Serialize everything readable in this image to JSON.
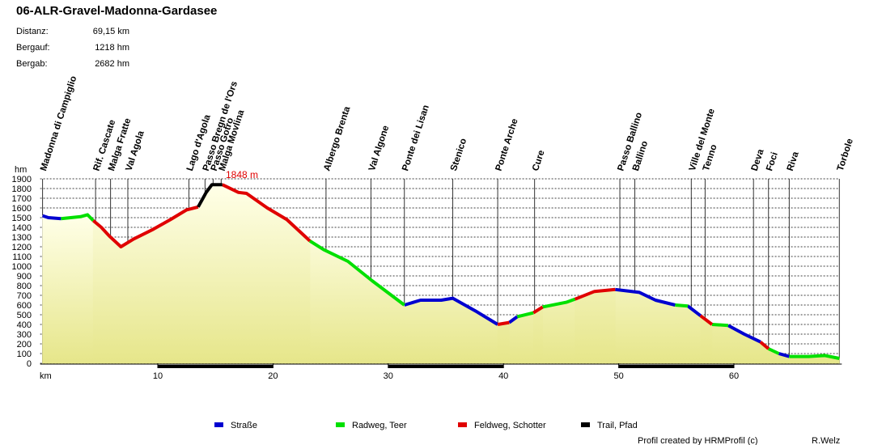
{
  "chart_data": {
    "type": "elevation-profile",
    "title": "06-ALR-Gravel-Madonna-Gardasee",
    "stats": [
      {
        "label": "Distanz:",
        "value": "69,15 km"
      },
      {
        "label": "Bergauf:",
        "value": "1218 hm"
      },
      {
        "label": "Bergab:",
        "value": "2682 hm"
      }
    ],
    "y_label": "hm",
    "x_label": "km",
    "xlim": [
      0,
      69.15
    ],
    "ylim": [
      0,
      1900
    ],
    "xticks": [
      10,
      20,
      30,
      40,
      50,
      60
    ],
    "yticks": [
      0,
      100,
      200,
      300,
      400,
      500,
      600,
      700,
      800,
      900,
      1000,
      1100,
      1200,
      1300,
      1400,
      1500,
      1600,
      1700,
      1800,
      1900
    ],
    "grid": true,
    "annotation": "1848 m",
    "waypoints": [
      {
        "label": "Madonna di Campiglio",
        "km": 0
      },
      {
        "label": "Rif. Cascate",
        "km": 4.6
      },
      {
        "label": "Malga Fratte",
        "km": 5.9
      },
      {
        "label": "Val Agola",
        "km": 7.4
      },
      {
        "label": "Lago d'Agola",
        "km": 12.7
      },
      {
        "label": "Passo Bregn de l'Ors",
        "km": 14.1
      },
      {
        "label": "Passo Gotro",
        "km": 14.8
      },
      {
        "label": "Malga Movlina",
        "km": 15.5
      },
      {
        "label": "Albergo Brenta",
        "km": 24.6
      },
      {
        "label": "Val Algone",
        "km": 28.5
      },
      {
        "label": "Ponte dei Lisan",
        "km": 31.4
      },
      {
        "label": "Stenico",
        "km": 35.6
      },
      {
        "label": "Ponte Arche",
        "km": 39.5
      },
      {
        "label": "Cure",
        "km": 42.7
      },
      {
        "label": "Passo Ballino",
        "km": 50.1
      },
      {
        "label": "Ballino",
        "km": 51.4
      },
      {
        "label": "Ville del Monte",
        "km": 56.3
      },
      {
        "label": "Tenno",
        "km": 57.5
      },
      {
        "label": "Deva",
        "km": 61.7
      },
      {
        "label": "Foci",
        "km": 63.0
      },
      {
        "label": "Riva",
        "km": 64.8
      },
      {
        "label": "Torbole",
        "km": 69.15
      }
    ],
    "series": [
      {
        "name": "Straße",
        "color": "#0000d0",
        "x": [
          0,
          0.5,
          1.6,
          null,
          31.4,
          32.8,
          34.6,
          35.6,
          37.7,
          39.5,
          null,
          40.5,
          41.2,
          null,
          49.7,
          51.8,
          53.2,
          54.9,
          null,
          56.0,
          57.1,
          null,
          59.5,
          60.9,
          62.3,
          null,
          63.9,
          64.8
        ],
        "values": [
          1520,
          1500,
          1490,
          null,
          600,
          650,
          650,
          670,
          530,
          400,
          null,
          420,
          480,
          null,
          760,
          730,
          650,
          600,
          null,
          590,
          490,
          null,
          390,
          300,
          220,
          null,
          100,
          70
        ]
      },
      {
        "name": "Radweg, Teer",
        "color": "#00e000",
        "x": [
          1.6,
          3.3,
          3.9,
          4.4,
          null,
          23.2,
          24.4,
          26.5,
          28.6,
          31.4,
          null,
          41.2,
          42.6,
          null,
          43.4,
          45.5,
          46.2,
          null,
          54.9,
          56.0,
          null,
          58.1,
          59.5,
          null,
          63.0,
          63.9,
          null,
          64.8,
          66.5,
          67.9,
          69.15
        ],
        "values": [
          1490,
          1510,
          1530,
          1470,
          null,
          1260,
          1170,
          1050,
          850,
          600,
          null,
          480,
          520,
          null,
          580,
          630,
          660,
          null,
          600,
          590,
          null,
          400,
          390,
          null,
          150,
          100,
          null,
          70,
          70,
          80,
          50
        ]
      },
      {
        "name": "Feldweg, Schotter",
        "color": "#e00000",
        "x": [
          4.4,
          5.1,
          5.8,
          6.8,
          7.9,
          9.6,
          11.1,
          12.5,
          13.5,
          null,
          15.6,
          17.0,
          17.7,
          19.5,
          21.2,
          23.2,
          null,
          39.5,
          40.5,
          null,
          42.6,
          43.4,
          null,
          46.2,
          47.9,
          49.7,
          null,
          57.1,
          58.1,
          null,
          62.3,
          63.0
        ],
        "values": [
          1470,
          1400,
          1310,
          1200,
          1280,
          1380,
          1480,
          1580,
          1610,
          null,
          1840,
          1760,
          1750,
          1600,
          1480,
          1260,
          null,
          400,
          420,
          null,
          520,
          580,
          null,
          660,
          740,
          760,
          null,
          490,
          400,
          null,
          220,
          150
        ]
      },
      {
        "name": "Trail, Pfad",
        "color": "#000000",
        "x": [
          13.5,
          14.2,
          14.7,
          15.6
        ],
        "values": [
          1610,
          1760,
          1840,
          1840
        ]
      }
    ],
    "footer": "Profil created by HRMProfil (c)",
    "author": "R.Welz"
  }
}
